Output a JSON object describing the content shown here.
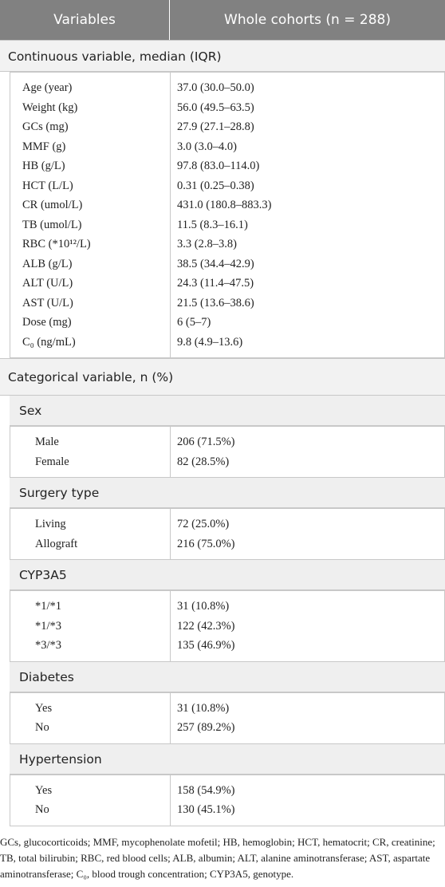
{
  "header": {
    "col1": "Variables",
    "col2": "Whole cohorts (n = 288)"
  },
  "continuous": {
    "title": "Continuous variable, median (IQR)",
    "rows": [
      [
        "Age (year)",
        "37.0 (30.0–50.0)"
      ],
      [
        "Weight (kg)",
        "56.0 (49.5–63.5)"
      ],
      [
        "GCs (mg)",
        "27.9 (27.1–28.8)"
      ],
      [
        "MMF (g)",
        "3.0 (3.0–4.0)"
      ],
      [
        "HB (g/L)",
        "97.8 (83.0–114.0)"
      ],
      [
        "HCT (L/L)",
        "0.31 (0.25–0.38)"
      ],
      [
        "CR (umol/L)",
        "431.0 (180.8–883.3)"
      ],
      [
        "TB (umol/L)",
        "11.5 (8.3–16.1)"
      ],
      [
        "RBC (*10¹²/L)",
        "3.3 (2.8–3.8)"
      ],
      [
        "ALB (g/L)",
        "38.5 (34.4–42.9)"
      ],
      [
        "ALT (U/L)",
        "24.3 (11.4–47.5)"
      ],
      [
        "AST (U/L)",
        "21.5 (13.6–38.6)"
      ],
      [
        "Dose (mg)",
        "6 (5–7)"
      ],
      [
        "C₀ (ng/mL)",
        "9.8 (4.9–13.6)"
      ]
    ]
  },
  "categorical": {
    "title": "Categorical variable, n (%)",
    "groups": [
      {
        "title": "Sex",
        "rows": [
          [
            "Male",
            "206 (71.5%)"
          ],
          [
            "Female",
            "82 (28.5%)"
          ]
        ]
      },
      {
        "title": "Surgery type",
        "rows": [
          [
            "Living",
            "72 (25.0%)"
          ],
          [
            "Allograft",
            "216 (75.0%)"
          ]
        ]
      },
      {
        "title": "CYP3A5",
        "rows": [
          [
            "*1/*1",
            "31 (10.8%)"
          ],
          [
            "*1/*3",
            "122 (42.3%)"
          ],
          [
            "*3/*3",
            "135 (46.9%)"
          ]
        ]
      },
      {
        "title": "Diabetes",
        "rows": [
          [
            "Yes",
            "31 (10.8%)"
          ],
          [
            "No",
            "257 (89.2%)"
          ]
        ]
      },
      {
        "title": "Hypertension",
        "rows": [
          [
            "Yes",
            "158 (54.9%)"
          ],
          [
            "No",
            "130 (45.1%)"
          ]
        ]
      }
    ]
  },
  "footnote": "GCs, glucocorticoids; MMF, mycophenolate mofetil; HB, hemoglobin; HCT, hematocrit; CR, creatinine; TB, total bilirubin; RBC, red blood cells; ALB, albumin; ALT, alanine aminotransferase; AST, aspartate aminotransferase; C₀, blood trough concentration; CYP3A5, genotype."
}
